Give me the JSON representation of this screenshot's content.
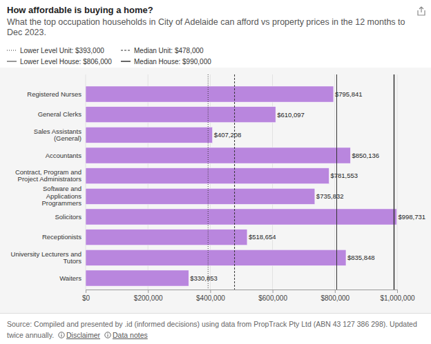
{
  "chart_data": {
    "type": "bar",
    "title": "How affordable is buying a home?",
    "subtitle": "What the top occupation households in City of Adelaide can afford vs property prices in the 12 months to Dec 2023.",
    "orientation": "horizontal",
    "categories": [
      "Registered Nurses",
      "General Clerks",
      "Sales Assistants (General)",
      "Accountants",
      "Contract, Program and Project Administrators",
      "Software and Applications Programmers",
      "Solicitors",
      "Receptionists",
      "University Lecturers and Tutors",
      "Waiters"
    ],
    "values": [
      795841,
      610097,
      407208,
      850136,
      781553,
      735832,
      998731,
      518654,
      835848,
      330853
    ],
    "value_labels": [
      "$795,841",
      "$610,097",
      "$407,208",
      "$850,136",
      "$781,553",
      "$735,832",
      "$998,731",
      "$518,654",
      "$835,848",
      "$330,853"
    ],
    "data_labels": true,
    "color": "#b986de",
    "xlim": [
      0,
      1000000
    ],
    "xticks": [
      {
        "value": 0,
        "label": "$0"
      },
      {
        "value": 200000,
        "label": "$200,000"
      },
      {
        "value": 400000,
        "label": "$400,000"
      },
      {
        "value": 600000,
        "label": "$600,000"
      },
      {
        "value": 800000,
        "label": "$800,000"
      },
      {
        "value": 1000000,
        "label": "$1,000,000"
      }
    ],
    "grid": true,
    "reference_lines": [
      {
        "label": "Lower Level Unit: $393,000",
        "value": 393000,
        "line_style": "dotted"
      },
      {
        "label": "Median Unit: $478,000",
        "value": 478000,
        "line_style": "dashed"
      },
      {
        "label": "Lower Level House: $806,000",
        "value": 806000,
        "line_style": "solid"
      },
      {
        "label": "Median House: $990,000",
        "value": 990000,
        "line_style": "solid"
      }
    ],
    "source": "Source: Compiled and presented by .id (informed decisions) using data from PropTrack Pty Ltd (ABN 43 127 386 298). Updated twice annually.",
    "links": [
      "Disclaimer",
      "Data notes"
    ]
  }
}
